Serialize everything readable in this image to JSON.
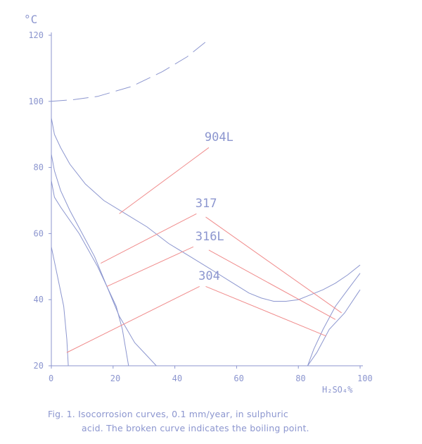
{
  "chart_data": {
    "type": "line",
    "y_unit": "°C",
    "x_unit": "H₂SO₄%",
    "xlim": [
      0,
      100
    ],
    "ylim": [
      20,
      120
    ],
    "x_ticks": [
      0,
      20,
      40,
      60,
      80,
      100
    ],
    "y_ticks": [
      20,
      40,
      60,
      80,
      100,
      120
    ],
    "grid": false,
    "colors": {
      "curve": "#8c96cf",
      "leader": "#f08c8c",
      "text": "#8c96cf"
    },
    "series": [
      {
        "name": "904L",
        "points": [
          [
            0,
            95
          ],
          [
            1,
            90
          ],
          [
            3,
            86
          ],
          [
            6,
            81
          ],
          [
            11,
            75
          ],
          [
            17,
            70
          ],
          [
            24,
            66
          ],
          [
            31,
            62
          ],
          [
            38,
            57
          ],
          [
            45,
            53
          ],
          [
            52,
            49
          ],
          [
            58,
            45.5
          ],
          [
            64,
            42
          ],
          [
            68,
            40.5
          ],
          [
            72,
            39.5
          ],
          [
            76,
            39.5
          ],
          [
            80,
            40
          ],
          [
            84,
            41.5
          ],
          [
            88,
            43
          ],
          [
            92,
            45
          ],
          [
            96,
            47.5
          ],
          [
            100,
            50.5
          ]
        ]
      },
      {
        "name": "317",
        "points": [
          [
            0,
            84
          ],
          [
            1,
            79
          ],
          [
            3,
            73
          ],
          [
            6,
            67
          ],
          [
            10,
            60
          ],
          [
            14,
            53
          ],
          [
            18,
            44
          ],
          [
            22,
            35
          ],
          [
            27,
            27
          ],
          [
            31,
            23
          ],
          [
            34,
            20
          ]
        ]
      },
      {
        "name": "316L",
        "points": [
          [
            0,
            76
          ],
          [
            1,
            71
          ],
          [
            3,
            68
          ],
          [
            6,
            64
          ],
          [
            9,
            60
          ],
          [
            12,
            55
          ],
          [
            15,
            50
          ],
          [
            18,
            44
          ],
          [
            21,
            38
          ],
          [
            23,
            31
          ],
          [
            25,
            20
          ]
        ]
      },
      {
        "name": "304",
        "points": [
          [
            0,
            56
          ],
          [
            2,
            47
          ],
          [
            4,
            38
          ],
          [
            5,
            28
          ],
          [
            5.5,
            20
          ]
        ]
      },
      {
        "name": "",
        "points": [
          [
            83,
            20
          ],
          [
            85,
            25
          ],
          [
            88,
            31
          ],
          [
            92,
            38
          ],
          [
            96,
            43
          ],
          [
            100,
            48
          ]
        ]
      },
      {
        "name": "",
        "points": [
          [
            83,
            20
          ],
          [
            86,
            24
          ],
          [
            90,
            31
          ],
          [
            95,
            36
          ],
          [
            100,
            43
          ]
        ]
      },
      {
        "name": "",
        "style": "dashed",
        "points": [
          [
            0,
            100
          ],
          [
            7,
            100.5
          ],
          [
            15,
            101.5
          ],
          [
            26,
            104.5
          ],
          [
            36,
            109
          ],
          [
            44,
            113.5
          ],
          [
            50,
            118
          ],
          [
            51,
            119
          ]
        ]
      }
    ],
    "curve_labels": [
      {
        "text": "904L",
        "x": 51,
        "y": 88,
        "leader": [
          [
            51,
            86
          ],
          [
            22,
            66
          ]
        ]
      },
      {
        "text": "317",
        "x": 48,
        "y": 68,
        "leader_in": [
          [
            47,
            66
          ],
          [
            16,
            51
          ]
        ],
        "leader_out": [
          [
            50,
            65
          ],
          [
            94,
            36
          ]
        ]
      },
      {
        "text": "316L",
        "x": 48,
        "y": 58,
        "leader_in": [
          [
            46,
            56
          ],
          [
            18,
            44
          ]
        ],
        "leader_out": [
          [
            51,
            55
          ],
          [
            92,
            34
          ]
        ]
      },
      {
        "text": "304",
        "x": 49,
        "y": 46,
        "leader_in": [
          [
            48,
            44
          ],
          [
            5,
            24
          ]
        ],
        "leader_out": [
          [
            50,
            44
          ],
          [
            89,
            29
          ]
        ]
      }
    ]
  },
  "caption": {
    "line1": "Fig. 1.   Isocorrosion curves, 0.1 mm/year, in sulphuric",
    "line2": "acid. The broken curve indicates the boiling point."
  }
}
